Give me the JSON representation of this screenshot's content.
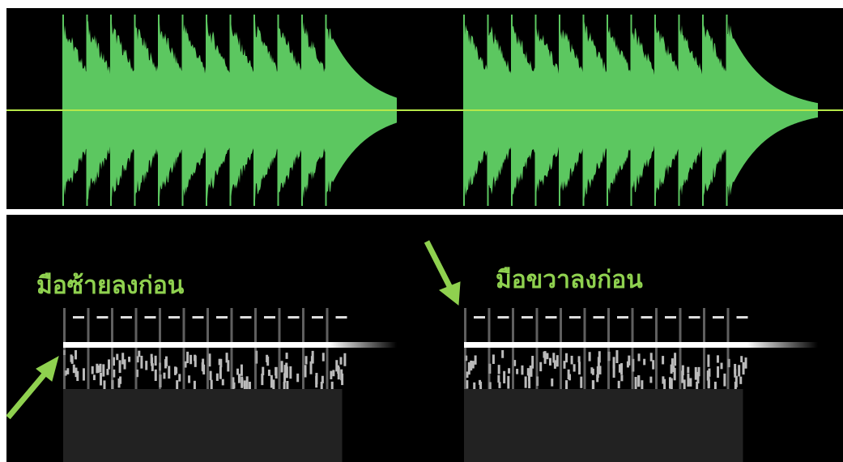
{
  "annotations": {
    "left": "มือซ้ายลงก่อน",
    "right": "มือขวาลงก่อน"
  }
}
